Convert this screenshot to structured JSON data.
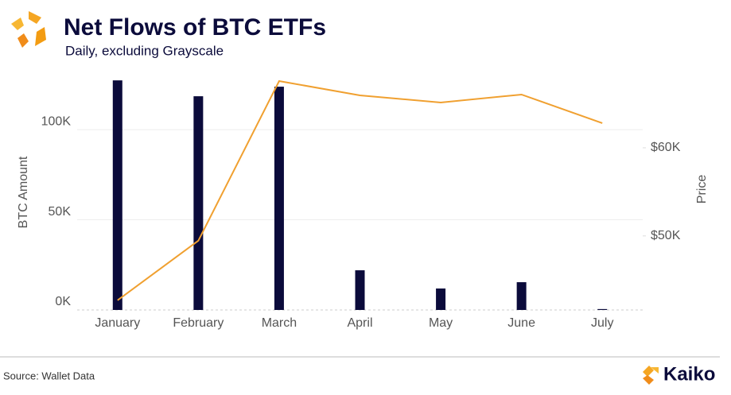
{
  "chart_data": {
    "type": "bar-line",
    "title": "Net Flows of BTC ETFs",
    "subtitle": "Daily, excluding Grayscale",
    "ylabel": "BTC Amount",
    "y2label": "Price",
    "source": "Source: Wallet Data",
    "brand": "Kaiko",
    "categories": [
      "January",
      "February",
      "March",
      "April",
      "May",
      "June",
      "July"
    ],
    "series": [
      {
        "type": "bar",
        "color": "#0b0b3b",
        "axis": "y",
        "values": [
          127300,
          118500,
          123800,
          22000,
          11900,
          15400,
          500
        ]
      },
      {
        "type": "line",
        "color": "#f0a030",
        "axis": "y2",
        "values": [
          42700,
          49460,
          67570,
          65950,
          65140,
          66040,
          62800
        ]
      }
    ],
    "ylim": [
      0,
      130000
    ],
    "yticks": [
      {
        "value": 0,
        "label": "0K"
      },
      {
        "value": 50000,
        "label": "50K"
      },
      {
        "value": 100000,
        "label": "100K"
      }
    ],
    "y2lim": [
      41600,
      68200
    ],
    "y2ticks": [
      {
        "value": 50000,
        "label": "$50K"
      },
      {
        "value": 60000,
        "label": "$60K"
      }
    ],
    "grid": true
  }
}
